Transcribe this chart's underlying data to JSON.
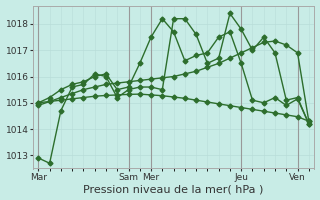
{
  "bg_color": "#c8ece6",
  "grid_color": "#b8ddd8",
  "line_color": "#2d6e2d",
  "marker": "D",
  "markersize": 2.5,
  "linewidth": 1.0,
  "ylim": [
    1012.5,
    1018.7
  ],
  "yticks": [
    1013,
    1014,
    1015,
    1016,
    1017,
    1018
  ],
  "xlabel": "Pression niveau de la mer( hPa )",
  "xlabel_fontsize": 8,
  "tick_fontsize": 6.5,
  "n_points": 25,
  "day_positions": [
    0,
    8,
    10,
    18,
    23
  ],
  "xtick_labels": [
    "Mar",
    "Sam",
    "Mer",
    "Jeu",
    "Ven"
  ],
  "vline_positions": [
    0,
    8,
    10,
    18,
    23
  ],
  "series": [
    [
      1012.9,
      1012.7,
      1014.7,
      1015.6,
      1015.7,
      1016.1,
      1016.0,
      1015.2,
      1015.5,
      1015.6,
      1015.6,
      1015.5,
      1018.2,
      1018.2,
      1017.6,
      1016.5,
      1016.7,
      1018.4,
      1017.8,
      1017.0,
      1017.5,
      1016.9,
      1015.1,
      1015.2,
      1014.2
    ],
    [
      1014.9,
      1015.05,
      1015.2,
      1015.35,
      1015.5,
      1015.6,
      1015.7,
      1015.75,
      1015.8,
      1015.85,
      1015.9,
      1015.95,
      1016.0,
      1016.1,
      1016.2,
      1016.35,
      1016.5,
      1016.7,
      1016.9,
      1017.1,
      1017.3,
      1017.35,
      1017.2,
      1016.9,
      1014.3
    ],
    [
      1015.0,
      1015.05,
      1015.1,
      1015.15,
      1015.2,
      1015.25,
      1015.28,
      1015.3,
      1015.32,
      1015.33,
      1015.3,
      1015.27,
      1015.22,
      1015.17,
      1015.1,
      1015.03,
      1014.96,
      1014.89,
      1014.82,
      1014.75,
      1014.68,
      1014.61,
      1014.54,
      1014.47,
      1014.3
    ],
    [
      1015.0,
      1015.2,
      1015.5,
      1015.7,
      1015.8,
      1016.0,
      1016.1,
      1015.5,
      1015.6,
      1016.5,
      1017.5,
      1018.2,
      1017.7,
      1016.6,
      1016.8,
      1016.9,
      1017.5,
      1017.7,
      1016.5,
      1015.1,
      1015.0,
      1015.2,
      1014.9,
      1015.15,
      1014.2
    ]
  ]
}
